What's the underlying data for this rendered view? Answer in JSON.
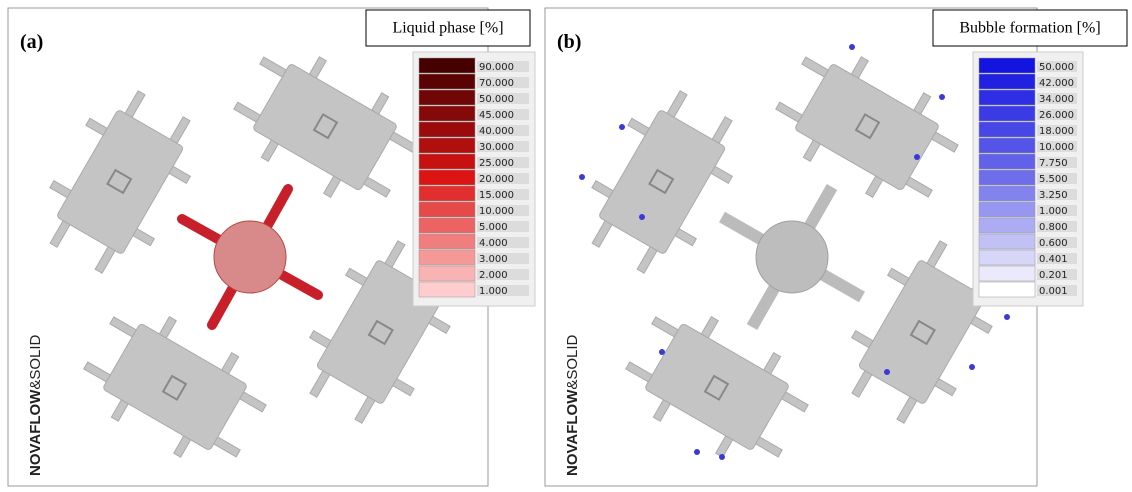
{
  "panels": [
    {
      "label": "(a)",
      "legend_title": "Liquid phase [%]",
      "legend_values": [
        "90.000",
        "70.000",
        "50.000",
        "45.000",
        "40.000",
        "30.000",
        "25.000",
        "20.000",
        "15.000",
        "10.000",
        "5.000",
        "4.000",
        "3.000",
        "2.000",
        "1.000"
      ],
      "watermark": {
        "brand": "NOVAFLOW",
        "suffix": "&SOLID"
      }
    },
    {
      "label": "(b)",
      "legend_title": "Bubble formation [%]",
      "legend_values": [
        "50.000",
        "42.000",
        "34.000",
        "26.000",
        "18.000",
        "10.000",
        "7.750",
        "5.500",
        "3.250",
        "1.000",
        "0.800",
        "0.600",
        "0.401",
        "0.201",
        "0.001"
      ],
      "watermark": {
        "brand": "NOVAFLOW",
        "suffix": "&SOLID"
      }
    }
  ]
}
